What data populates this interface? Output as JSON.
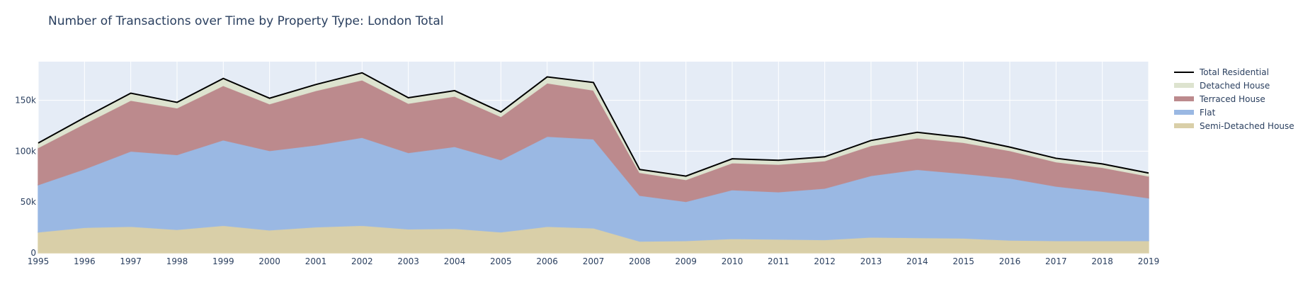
{
  "chart_data": {
    "type": "area",
    "title": "Number of Transactions over Time by Property Type: London Total",
    "xlabel": "",
    "ylabel": "",
    "x": [
      1995,
      1996,
      1997,
      1998,
      1999,
      2000,
      2001,
      2002,
      2003,
      2004,
      2005,
      2006,
      2007,
      2008,
      2009,
      2010,
      2011,
      2012,
      2013,
      2014,
      2015,
      2016,
      2017,
      2018,
      2019
    ],
    "ylim": [
      0,
      188000
    ],
    "y_ticks": [
      0,
      50000,
      100000,
      150000
    ],
    "y_tick_labels": [
      "0",
      "50k",
      "100k",
      "150k"
    ],
    "stack_order": [
      "Semi-Detached House",
      "Flat",
      "Terraced House",
      "Detached House"
    ],
    "series": [
      {
        "name": "Semi-Detached House",
        "color": "#d9cfa8",
        "values": [
          20500,
          25000,
          26000,
          23000,
          27000,
          22500,
          25500,
          27000,
          23500,
          24000,
          20500,
          26000,
          24500,
          11500,
          12000,
          14000,
          13500,
          13000,
          15500,
          15000,
          14500,
          12500,
          12000,
          12000,
          12000
        ]
      },
      {
        "name": "Flat",
        "color": "#9ab8e3",
        "values": [
          46500,
          57500,
          74000,
          73500,
          84000,
          78000,
          80500,
          86500,
          75000,
          80500,
          71000,
          88500,
          87500,
          45000,
          38500,
          48000,
          46500,
          50500,
          60500,
          67000,
          63500,
          61000,
          53500,
          48500,
          42000
        ]
      },
      {
        "name": "Terraced House",
        "color": "#bc8a8d",
        "values": [
          36500,
          44500,
          50000,
          46000,
          53500,
          46000,
          53500,
          56500,
          48500,
          49500,
          42500,
          52500,
          48000,
          22500,
          21500,
          26500,
          27000,
          27000,
          29500,
          31000,
          30500,
          27000,
          24000,
          23500,
          21500
        ]
      },
      {
        "name": "Detached House",
        "color": "#dde3cf",
        "values": [
          4500,
          6000,
          7000,
          5500,
          7000,
          5500,
          6000,
          7000,
          5500,
          5500,
          4500,
          6000,
          7500,
          3000,
          3500,
          4000,
          4000,
          4000,
          5000,
          5500,
          5000,
          3500,
          3500,
          3500,
          3000
        ]
      },
      {
        "name": "Total Residential",
        "color": "#000000",
        "kind": "line",
        "values": [
          108000,
          133000,
          157000,
          148000,
          171500,
          152000,
          165500,
          177000,
          152500,
          159500,
          138500,
          173000,
          167500,
          82000,
          75500,
          92500,
          91000,
          94500,
          110500,
          118500,
          113500,
          104000,
          93000,
          87500,
          78500
        ]
      }
    ],
    "legend_order": [
      "Total Residential",
      "Detached House",
      "Terraced House",
      "Flat",
      "Semi-Detached House"
    ],
    "legend_position": "right",
    "grid": true,
    "background": "#e5ecf6"
  }
}
